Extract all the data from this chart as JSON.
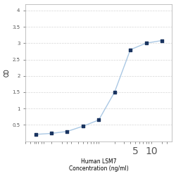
{
  "x_values": [
    0.0625,
    0.125,
    0.25,
    0.5,
    1.0,
    2.0,
    4.0,
    8.0,
    16.0
  ],
  "y_values": [
    0.21,
    0.24,
    0.3,
    0.46,
    0.65,
    1.5,
    2.8,
    3.0,
    3.08
  ],
  "line_color": "#aac8e4",
  "marker_color": "#1a3460",
  "marker_style": "s",
  "marker_size": 3.5,
  "line_width": 1.0,
  "xlabel_line1": "Human LSM7",
  "xlabel_line2": "Concentration (ng/ml)",
  "ylabel": "OD",
  "xlim_log": [
    -1.5,
    1.3
  ],
  "ylim": [
    0.0,
    4.2
  ],
  "yticks": [
    0.5,
    1.0,
    1.5,
    2.0,
    2.5,
    3.0,
    3.5,
    4.0
  ],
  "ytick_labels": [
    "0.5",
    "1",
    "1.5",
    "2",
    "2.5",
    "3",
    "3.5",
    "4"
  ],
  "xticks": [
    0.0625,
    0.5,
    5.0,
    10.0
  ],
  "xtick_labels": [
    "",
    "",
    "5",
    "10"
  ],
  "grid_color": "#cccccc",
  "grid_style": "--",
  "grid_alpha": 0.8,
  "background_color": "#ffffff",
  "tick_fontsize": 5,
  "label_fontsize": 5.5
}
